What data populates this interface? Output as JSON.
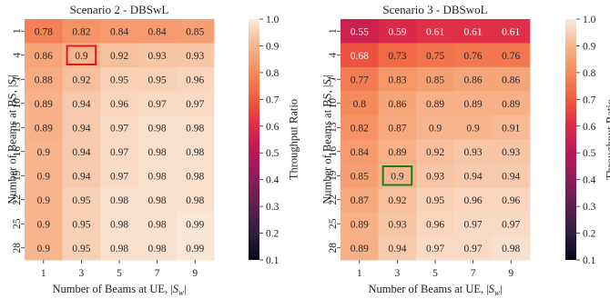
{
  "chart_data": [
    {
      "type": "heatmap",
      "title": "Scenario 2 - DBSwL",
      "xlabel": "Number of Beams at UE, |S_w|",
      "ylabel": "Number of Beams at BS, |S_f|",
      "x_categories": [
        "1",
        "3",
        "5",
        "7",
        "9"
      ],
      "y_categories": [
        "1",
        "4",
        "7",
        "10",
        "13",
        "16",
        "19",
        "22",
        "25",
        "28"
      ],
      "values": [
        [
          0.78,
          0.82,
          0.84,
          0.84,
          0.85
        ],
        [
          0.86,
          0.9,
          0.92,
          0.93,
          0.93
        ],
        [
          0.88,
          0.92,
          0.95,
          0.95,
          0.96
        ],
        [
          0.89,
          0.94,
          0.96,
          0.97,
          0.97
        ],
        [
          0.89,
          0.94,
          0.97,
          0.98,
          0.98
        ],
        [
          0.9,
          0.94,
          0.97,
          0.98,
          0.98
        ],
        [
          0.9,
          0.94,
          0.97,
          0.98,
          0.98
        ],
        [
          0.9,
          0.95,
          0.98,
          0.98,
          0.98
        ],
        [
          0.9,
          0.95,
          0.98,
          0.98,
          0.99
        ],
        [
          0.9,
          0.95,
          0.98,
          0.98,
          0.99
        ]
      ],
      "highlight": {
        "row": 1,
        "col": 1,
        "color": "#e8151b"
      },
      "colorbar": {
        "label": "Throughput Ratio",
        "range": [
          0.1,
          1.0
        ],
        "ticks": [
          "0.1",
          "0.2",
          "0.3",
          "0.4",
          "0.5",
          "0.6",
          "0.7",
          "0.8",
          "0.9",
          "1.0"
        ]
      }
    },
    {
      "type": "heatmap",
      "title": "Scenario 3 - DBSwoL",
      "xlabel": "Number of Beams at UE, |S_w|",
      "ylabel": "Number of Beams at BS, |S_f|",
      "x_categories": [
        "1",
        "3",
        "5",
        "7",
        "9"
      ],
      "y_categories": [
        "1",
        "4",
        "7",
        "10",
        "13",
        "16",
        "19",
        "22",
        "25",
        "28"
      ],
      "values": [
        [
          0.55,
          0.59,
          0.61,
          0.61,
          0.61
        ],
        [
          0.68,
          0.73,
          0.75,
          0.76,
          0.76
        ],
        [
          0.77,
          0.83,
          0.85,
          0.86,
          0.86
        ],
        [
          0.8,
          0.86,
          0.89,
          0.89,
          0.89
        ],
        [
          0.82,
          0.87,
          0.9,
          0.9,
          0.91
        ],
        [
          0.84,
          0.89,
          0.92,
          0.93,
          0.93
        ],
        [
          0.85,
          0.9,
          0.93,
          0.94,
          0.94
        ],
        [
          0.87,
          0.92,
          0.95,
          0.96,
          0.96
        ],
        [
          0.89,
          0.93,
          0.96,
          0.97,
          0.97
        ],
        [
          0.89,
          0.94,
          0.97,
          0.97,
          0.98
        ]
      ],
      "highlight": {
        "row": 6,
        "col": 1,
        "color": "#1e7d1e"
      },
      "colorbar": {
        "label": "Throughput Ratio",
        "range": [
          0.1,
          1.0
        ],
        "ticks": [
          "0.1",
          "0.2",
          "0.3",
          "0.4",
          "0.5",
          "0.6",
          "0.7",
          "0.8",
          "0.9",
          "1.0"
        ]
      }
    }
  ]
}
